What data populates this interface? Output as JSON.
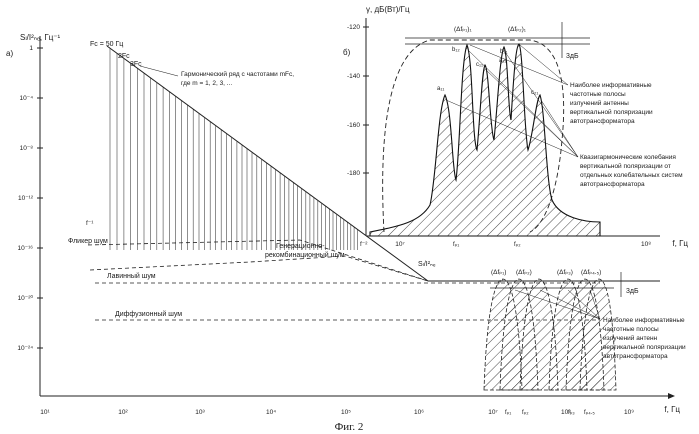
{
  "figure": {
    "caption": "Фиг. 2",
    "panel_a": {
      "label": "а)",
      "y_axis_label": "Sₗ/I²ₙₑ, Гц⁻¹",
      "y_ticks": [
        "1",
        "10⁻⁴",
        "10⁻⁸",
        "10⁻¹²",
        "10⁻¹⁶",
        "10⁻²⁰",
        "10⁻²⁴"
      ],
      "x_axis_label": "f, Гц",
      "x_ticks": [
        "10¹",
        "10²",
        "10³",
        "10⁴",
        "10⁵",
        "10⁶",
        "10⁷",
        "10⁸",
        "10⁹"
      ],
      "fc_label": "Fс = 50 Гц",
      "harm_2": "2Fс",
      "harm_3": "3Fс",
      "harmonic_text_1": "Гармонический ряд с частотами mFс,",
      "harmonic_text_2": "где m = 1, 2, 3, ...",
      "flicker_label": "Фликер шум",
      "flicker_slope": "f⁻¹",
      "gr_label_1": "Генерационно-",
      "gr_label_2": "рекомбинационный шум",
      "gr_slope": "f⁻²",
      "avalanche_label": "Лавинный шум",
      "diffusion_label": "Диффузионный шум",
      "sj_label": "Sₗ/I²ₙₑ",
      "band_labels": [
        "(Δfₚ₁)",
        "(Δfₚ₂)",
        "(Δfₚ₃)",
        "(Δfₚ₄.₅)"
      ],
      "bottom_freq_labels": [
        "fₚ₁",
        "fₚ₂",
        "fₚ₃",
        "fₚ₄.₅"
      ],
      "db_label": "3дБ",
      "note_lines": [
        "Наиболее информативные",
        "частотные полосы",
        "излучений антенн",
        "вертикальной поляризации",
        "автотрансформатора"
      ]
    },
    "panel_b": {
      "label": "б)",
      "y_axis_label": "γ, дБ(Вт)/Гц",
      "y_ticks": [
        "-120",
        "-140",
        "-160",
        "-180"
      ],
      "x_axis_label": "f, Гц",
      "x_ticks": [
        "10⁷",
        "10⁸"
      ],
      "x_freq_labels": [
        "fₚ₁",
        "fₚ₂"
      ],
      "band_labels": [
        "(Δfₚ₁)₁",
        "(Δfₚ₂)₁"
      ],
      "peak_labels": [
        "a₁₁",
        "b₁₂",
        "c₁₁",
        "a₂₁",
        "b₂₁",
        "c₂₁"
      ],
      "db_label": "3дБ",
      "note_1_lines": [
        "Наиболее информативные",
        "частотные полосы",
        "излучений антенны",
        "вертикальной поляризации",
        "автотрансформатора"
      ],
      "note_2_lines": [
        "Квазигармонические колебания",
        "вертикальной поляризации от",
        "отдельных колебательных систем",
        "автотрансформатора"
      ]
    }
  }
}
